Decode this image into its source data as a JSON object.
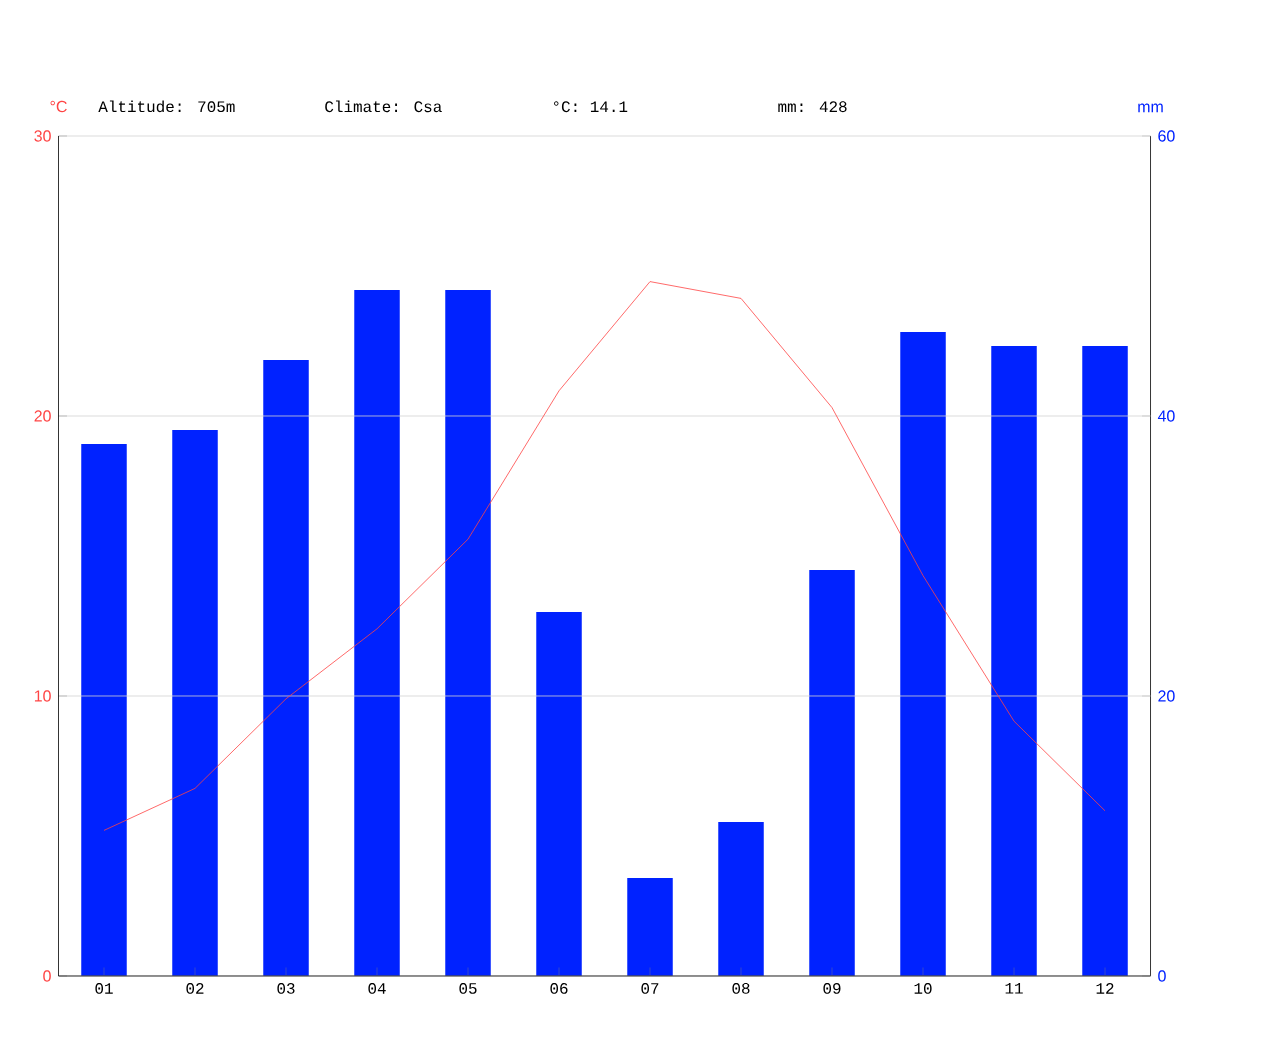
{
  "chart_data": {
    "type": "bar",
    "ylabel": "°C",
    "y2label": "mm",
    "annotations": [
      "Altitude: 705m",
      "Climate: Csa",
      "°C: 14.1",
      "mm: 428"
    ],
    "categories": [
      "01",
      "02",
      "03",
      "04",
      "05",
      "06",
      "07",
      "08",
      "09",
      "10",
      "11",
      "12"
    ],
    "series": [
      {
        "axis": "y2",
        "color": "#0022ff",
        "values": [
          38,
          39,
          44,
          49,
          49,
          26,
          7,
          11,
          29,
          46,
          45,
          45
        ]
      },
      {
        "type": "line",
        "color": "#ff4444",
        "values": [
          5.2,
          6.7,
          9.9,
          12.4,
          15.6,
          20.9,
          24.8,
          24.2,
          20.3,
          14.3,
          9.1,
          5.9
        ]
      }
    ],
    "ylim": [
      0,
      30
    ],
    "yticks": [
      0,
      10,
      20,
      30
    ],
    "y2lim": [
      0,
      60
    ],
    "y2ticks": [
      0,
      20,
      40,
      60
    ],
    "grid": "y",
    "marker": "none",
    "line_style": "solid"
  }
}
